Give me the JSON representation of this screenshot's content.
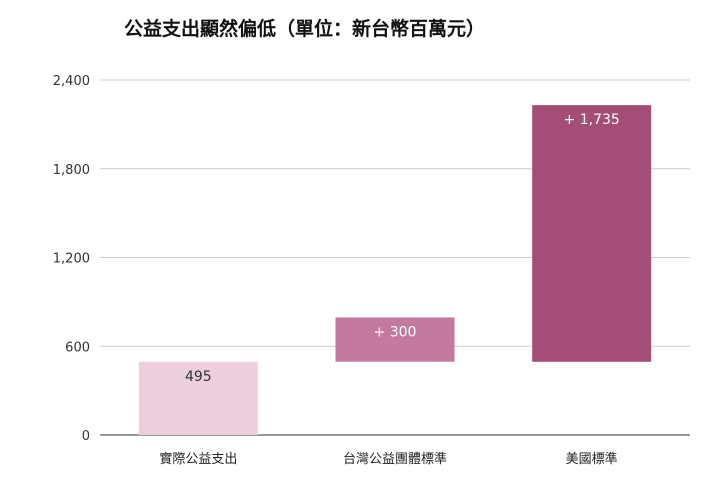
{
  "chart_data": {
    "type": "bar",
    "variant": "waterfall",
    "title": "公益支出顯然偏低（單位：新台幣百萬元）",
    "xlabel": "",
    "ylabel": "",
    "ylim": [
      0,
      2400
    ],
    "yticks": [
      0,
      600,
      1200,
      1800,
      2400
    ],
    "ytick_labels": [
      "0",
      "600",
      "1,200",
      "1,800",
      "2,400"
    ],
    "grid": true,
    "legend": "none",
    "categories": [
      "實際公益支出",
      "台灣公益團體標準",
      "美國標準"
    ],
    "bars": [
      {
        "category": "實際公益支出",
        "base": 0,
        "value": 495,
        "label": "495",
        "color": "#ebcfdc",
        "label_color": "#333333"
      },
      {
        "category": "台灣公益團體標準",
        "base": 495,
        "value": 300,
        "label": "+ 300",
        "color": "#c47a9e",
        "label_color": "#ffffff"
      },
      {
        "category": "美國標準",
        "base": 495,
        "value": 1735,
        "label": "+ 1,735",
        "color": "#a34d77",
        "label_color": "#ffffff"
      }
    ]
  }
}
